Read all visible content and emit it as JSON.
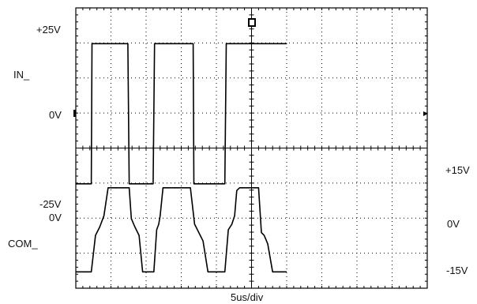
{
  "chart_data": {
    "type": "line",
    "xlabel": "5us/div",
    "x_div_us": 5,
    "x_divisions": 10,
    "y_divisions": 8,
    "grid": true,
    "series": [
      {
        "name": "IN_",
        "unit": "V",
        "volts_per_div": 12.5,
        "ref_level_label": "0V",
        "tick_labels": {
          "high": "+25V",
          "zero": "0V",
          "low": "-25V"
        },
        "x": [
          0,
          2.2,
          2.3,
          7.4,
          7.6,
          11.0,
          11.2,
          16.7,
          16.8,
          21.2,
          21.4,
          26.0,
          26.2,
          30.0
        ],
        "y": [
          -25,
          -25,
          25,
          25,
          -25,
          -25,
          25,
          25,
          -25,
          -25,
          25,
          25,
          25,
          25
        ]
      },
      {
        "name": "COM_",
        "unit": "V",
        "volts_per_div": 12.5,
        "ref_level_label": "0V",
        "tick_labels": {
          "high": "+15V",
          "zero": "0V",
          "low": "-15V"
        },
        "x": [
          0,
          2.2,
          2.8,
          3.4,
          4.0,
          4.6,
          7.2,
          7.6,
          7.9,
          8.4,
          9.0,
          9.5,
          11.1,
          11.5,
          11.8,
          12.0,
          12.4,
          12.8,
          16.3,
          16.9,
          17.5,
          18.1,
          18.8,
          21.2,
          21.7,
          22.2,
          22.6,
          22.9,
          23.3,
          26.0,
          26.4,
          26.8,
          27.3,
          28.0,
          30.0
        ],
        "y": [
          -15,
          -15,
          -2,
          1,
          5,
          15,
          15,
          15,
          4,
          1,
          -2,
          -15,
          -15,
          0,
          2,
          5,
          15,
          15,
          15,
          2,
          -1,
          -4,
          -15,
          -15,
          0,
          2,
          5,
          14,
          15,
          15,
          -1,
          -2,
          -5,
          -15,
          -15
        ]
      }
    ]
  }
}
